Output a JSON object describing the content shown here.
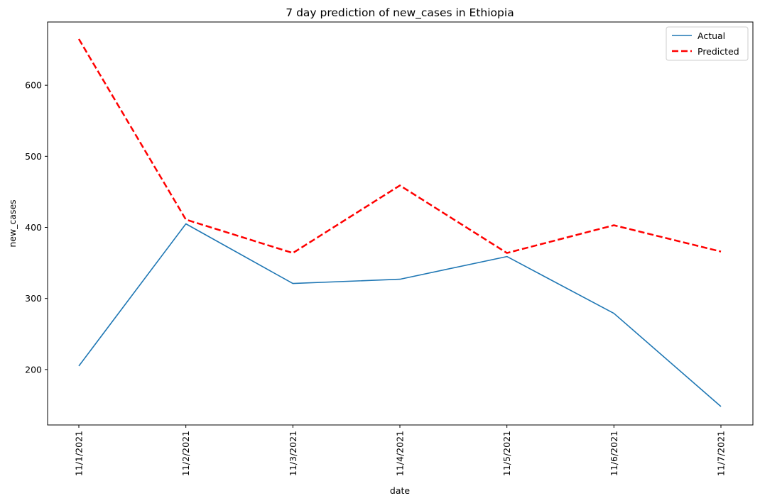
{
  "chart_data": {
    "type": "line",
    "title": "7 day prediction of new_cases in Ethiopia",
    "xlabel": "date",
    "ylabel": "new_cases",
    "categories": [
      "11/1/2021",
      "11/2/2021",
      "11/3/2021",
      "11/4/2021",
      "11/5/2021",
      "11/6/2021",
      "11/7/2021"
    ],
    "yticks": [
      200,
      300,
      400,
      500,
      600
    ],
    "ylim": [
      122,
      689
    ],
    "grid": false,
    "legend_position": "top-right",
    "series": [
      {
        "name": "Actual",
        "color": "#1f77b4",
        "style": "solid",
        "values": [
          205,
          405,
          321,
          327,
          359,
          279,
          148
        ]
      },
      {
        "name": "Predicted",
        "color": "#ff0000",
        "style": "dashed",
        "values": [
          665,
          411,
          364,
          459,
          364,
          403,
          366
        ]
      }
    ]
  }
}
